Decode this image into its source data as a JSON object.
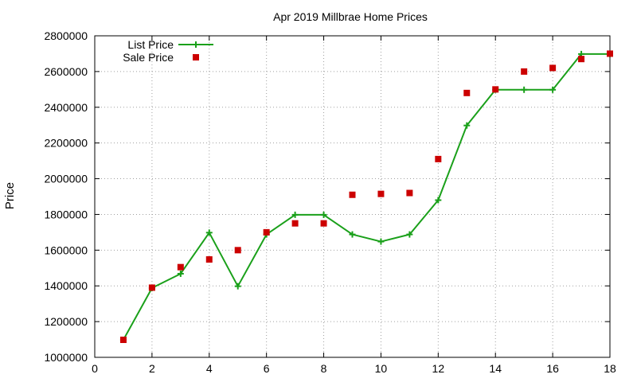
{
  "chart_data": {
    "type": "line",
    "title": "Apr 2019 Millbrae Home Prices",
    "xlabel": "",
    "ylabel": "Price",
    "xlim": [
      0,
      18
    ],
    "ylim": [
      1000000,
      2800000
    ],
    "xticks": [
      0,
      2,
      4,
      6,
      8,
      10,
      12,
      14,
      16,
      18
    ],
    "yticks": [
      1000000,
      1200000,
      1400000,
      1600000,
      1800000,
      2000000,
      2200000,
      2400000,
      2600000,
      2800000
    ],
    "xtick_labels": [
      "0",
      "2",
      "4",
      "6",
      "8",
      "10",
      "12",
      "14",
      "16",
      "18"
    ],
    "ytick_labels": [
      "1000000",
      "1200000",
      "1400000",
      "1600000",
      "1800000",
      "2000000",
      "2200000",
      "2400000",
      "2600000",
      "2800000"
    ],
    "grid": true,
    "legend_position": "top-left",
    "series": [
      {
        "name": "List Price",
        "style": "line-plus",
        "color": "#1aa01a",
        "x": [
          1,
          2,
          3,
          4,
          5,
          6,
          7,
          8,
          9,
          10,
          11,
          12,
          13,
          14,
          15,
          16,
          17,
          18
        ],
        "values": [
          1098000,
          1388000,
          1468000,
          1698000,
          1398000,
          1688000,
          1798000,
          1798000,
          1688000,
          1648000,
          1688000,
          1880000,
          2298000,
          2498000,
          2498000,
          2498000,
          2698000,
          2698000
        ]
      },
      {
        "name": "Sale Price",
        "style": "square-points",
        "color": "#cc0000",
        "x": [
          1,
          2,
          3,
          4,
          5,
          6,
          7,
          8,
          9,
          10,
          11,
          12,
          13,
          14,
          15,
          16,
          17,
          18
        ],
        "values": [
          1098000,
          1390000,
          1505000,
          1548000,
          1600000,
          1700000,
          1750000,
          1750000,
          1910000,
          1915000,
          1920000,
          2110000,
          2480000,
          2500000,
          2600000,
          2620000,
          2670000,
          2700000
        ]
      }
    ]
  }
}
